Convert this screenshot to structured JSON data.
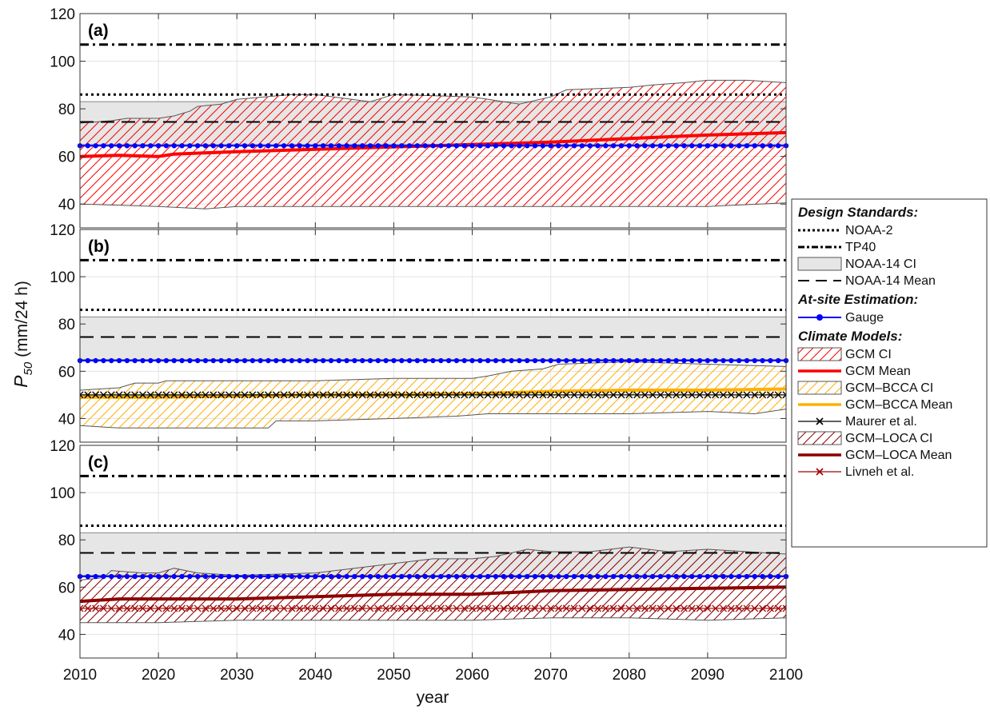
{
  "chart_data": {
    "type": "line",
    "xlabel": "year",
    "ylabel_main": "P",
    "ylabel_sub": "50",
    "ylabel_unit": "(mm/24 h)",
    "xlim": [
      2010,
      2100
    ],
    "ylim": [
      30,
      120
    ],
    "x_ticks": [
      2010,
      2020,
      2030,
      2040,
      2050,
      2060,
      2070,
      2080,
      2090,
      2100
    ],
    "y_ticks": [
      40,
      60,
      80,
      100,
      120
    ],
    "grid": true,
    "design_standards": {
      "NOAA-2": 86,
      "TP40": 107,
      "NOAA-14 CI": [
        65,
        83
      ],
      "NOAA-14 Mean": 74.5,
      "Gauge": 64.5
    },
    "legend": {
      "placement": "right",
      "sections": [
        {
          "heading": "Design Standards:",
          "items": [
            {
              "label": "NOAA-2",
              "style": "dotted"
            },
            {
              "label": "TP40",
              "style": "dashdot"
            },
            {
              "label": "NOAA-14 CI",
              "style": "grayfill"
            },
            {
              "label": "NOAA-14 Mean",
              "style": "dashed"
            }
          ]
        },
        {
          "heading": "At-site Estimation:",
          "items": [
            {
              "label": "Gauge",
              "style": "dotline",
              "color": "#0000ff"
            }
          ]
        },
        {
          "heading": "Climate Models:",
          "items": [
            {
              "label": "GCM CI",
              "style": "hatch",
              "color": "#ff0000"
            },
            {
              "label": "GCM Mean",
              "style": "line",
              "color": "#ff0000"
            },
            {
              "label": "GCM–BCCA CI",
              "style": "hatch",
              "color": "#ffb000"
            },
            {
              "label": "GCM–BCCA Mean",
              "style": "line",
              "color": "#ffb000"
            },
            {
              "label": "Maurer et al.",
              "style": "xline",
              "color": "#000000"
            },
            {
              "label": "GCM–LOCA CI",
              "style": "hatch",
              "color": "#8b0000"
            },
            {
              "label": "GCM–LOCA Mean",
              "style": "line",
              "color": "#8b0000"
            },
            {
              "label": "Livneh et al.",
              "style": "xline",
              "color": "#a00000"
            }
          ]
        }
      ]
    },
    "panels": [
      {
        "tag": "(a)",
        "ci_name": "GCM CI",
        "ci_color": "#ff0000",
        "ci_lower": [
          [
            2010,
            40
          ],
          [
            2020,
            39
          ],
          [
            2026,
            38
          ],
          [
            2030,
            39
          ],
          [
            2040,
            39
          ],
          [
            2050,
            39
          ],
          [
            2060,
            39
          ],
          [
            2070,
            39
          ],
          [
            2080,
            39
          ],
          [
            2090,
            39
          ],
          [
            2100,
            40.5
          ]
        ],
        "ci_upper": [
          [
            2010,
            74
          ],
          [
            2014,
            75
          ],
          [
            2016,
            76
          ],
          [
            2020,
            76
          ],
          [
            2022,
            77
          ],
          [
            2024,
            79
          ],
          [
            2025,
            81
          ],
          [
            2028,
            82
          ],
          [
            2030,
            84
          ],
          [
            2037,
            86
          ],
          [
            2040,
            86
          ],
          [
            2047,
            83
          ],
          [
            2050,
            86
          ],
          [
            2060,
            85
          ],
          [
            2066,
            82
          ],
          [
            2070,
            85
          ],
          [
            2072,
            88
          ],
          [
            2080,
            89
          ],
          [
            2083,
            90
          ],
          [
            2087,
            91
          ],
          [
            2090,
            92
          ],
          [
            2095,
            92
          ],
          [
            2100,
            91
          ]
        ],
        "mean_name": "GCM Mean",
        "mean_color": "#ff0000",
        "mean": [
          [
            2010,
            60
          ],
          [
            2015,
            60.5
          ],
          [
            2020,
            60
          ],
          [
            2022,
            61
          ],
          [
            2030,
            62
          ],
          [
            2040,
            63
          ],
          [
            2050,
            64
          ],
          [
            2060,
            65
          ],
          [
            2070,
            66
          ],
          [
            2080,
            67.5
          ],
          [
            2090,
            69
          ],
          [
            2100,
            70
          ]
        ],
        "obs_name": "",
        "obs_color": "",
        "obs_value": null
      },
      {
        "tag": "(b)",
        "ci_name": "GCM–BCCA CI",
        "ci_color": "#ffb000",
        "ci_lower": [
          [
            2010,
            37
          ],
          [
            2015,
            36
          ],
          [
            2025,
            36
          ],
          [
            2034,
            36
          ],
          [
            2035,
            39
          ],
          [
            2040,
            39
          ],
          [
            2050,
            40
          ],
          [
            2058,
            41
          ],
          [
            2062,
            42
          ],
          [
            2070,
            42
          ],
          [
            2080,
            42
          ],
          [
            2090,
            43
          ],
          [
            2096,
            42
          ],
          [
            2100,
            44
          ]
        ],
        "ci_upper": [
          [
            2010,
            52
          ],
          [
            2015,
            53
          ],
          [
            2017,
            55
          ],
          [
            2020,
            55
          ],
          [
            2021,
            56
          ],
          [
            2025,
            56
          ],
          [
            2030,
            56
          ],
          [
            2040,
            56
          ],
          [
            2050,
            57
          ],
          [
            2060,
            57
          ],
          [
            2062,
            58
          ],
          [
            2065,
            60
          ],
          [
            2069,
            61
          ],
          [
            2071,
            63
          ],
          [
            2080,
            64
          ],
          [
            2090,
            63
          ],
          [
            2100,
            62
          ]
        ],
        "mean_name": "GCM–BCCA Mean",
        "mean_color": "#ffb000",
        "mean": [
          [
            2010,
            49
          ],
          [
            2020,
            49
          ],
          [
            2030,
            49.5
          ],
          [
            2040,
            50
          ],
          [
            2050,
            50
          ],
          [
            2060,
            50.5
          ],
          [
            2070,
            51.5
          ],
          [
            2080,
            52
          ],
          [
            2090,
            52
          ],
          [
            2100,
            52.5
          ]
        ],
        "obs_name": "Maurer et al.",
        "obs_color": "#000000",
        "obs_value": 50
      },
      {
        "tag": "(c)",
        "ci_name": "GCM–LOCA CI",
        "ci_color": "#8b0000",
        "ci_lower": [
          [
            2010,
            45
          ],
          [
            2020,
            45
          ],
          [
            2030,
            46
          ],
          [
            2040,
            46
          ],
          [
            2050,
            46
          ],
          [
            2060,
            46
          ],
          [
            2070,
            47
          ],
          [
            2080,
            47
          ],
          [
            2090,
            46
          ],
          [
            2100,
            47
          ]
        ],
        "ci_upper": [
          [
            2010,
            63
          ],
          [
            2013,
            64
          ],
          [
            2014,
            67
          ],
          [
            2018,
            66
          ],
          [
            2020,
            66
          ],
          [
            2022,
            68
          ],
          [
            2025,
            66
          ],
          [
            2030,
            65
          ],
          [
            2040,
            66
          ],
          [
            2045,
            68
          ],
          [
            2050,
            70
          ],
          [
            2055,
            72
          ],
          [
            2060,
            72
          ],
          [
            2063,
            73
          ],
          [
            2067,
            76
          ],
          [
            2070,
            75
          ],
          [
            2075,
            75
          ],
          [
            2080,
            77
          ],
          [
            2085,
            75
          ],
          [
            2090,
            76
          ],
          [
            2095,
            75
          ],
          [
            2100,
            74
          ]
        ],
        "mean_name": "GCM–LOCA Mean",
        "mean_color": "#8b0000",
        "mean": [
          [
            2010,
            54
          ],
          [
            2015,
            55
          ],
          [
            2020,
            55
          ],
          [
            2030,
            55
          ],
          [
            2040,
            56
          ],
          [
            2050,
            57
          ],
          [
            2060,
            57
          ],
          [
            2070,
            58.5
          ],
          [
            2080,
            59
          ],
          [
            2090,
            59.5
          ],
          [
            2100,
            60
          ]
        ],
        "obs_name": "Livneh et al.",
        "obs_color": "#a00000",
        "obs_value": 51
      }
    ]
  }
}
